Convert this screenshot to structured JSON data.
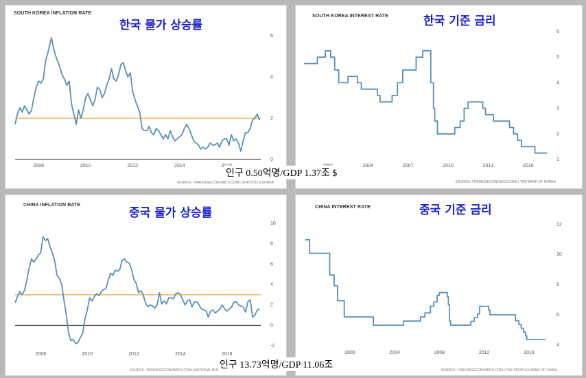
{
  "chart_data": [
    {
      "type": "line",
      "title": "SOUTH KOREA INFLATION RATE",
      "korean_title": "한국 물가 상승률",
      "source": "SOURCE: TRADINGECONOMICS.COM | STATISTICS KOREA",
      "xticks": [
        "2008",
        "2010",
        "2012",
        "2014",
        "2016"
      ],
      "yticks": [
        "0",
        "2",
        "4",
        "6"
      ],
      "xlim": [
        2007.0,
        2017.45
      ],
      "ylim": [
        0,
        6.2
      ],
      "reference_line": 2,
      "reference_color": "#f4a742",
      "series_color": "#5a8fb8",
      "x": [
        2007.0,
        2007.1,
        2007.2,
        2007.3,
        2007.4,
        2007.5,
        2007.6,
        2007.7,
        2007.8,
        2007.9,
        2008.0,
        2008.1,
        2008.2,
        2008.3,
        2008.4,
        2008.5,
        2008.55,
        2008.6,
        2008.7,
        2008.8,
        2008.9,
        2009.0,
        2009.1,
        2009.2,
        2009.3,
        2009.4,
        2009.5,
        2009.6,
        2009.7,
        2009.8,
        2009.9,
        2010.0,
        2010.1,
        2010.2,
        2010.3,
        2010.4,
        2010.5,
        2010.6,
        2010.7,
        2010.8,
        2010.9,
        2011.0,
        2011.1,
        2011.2,
        2011.3,
        2011.4,
        2011.5,
        2011.6,
        2011.7,
        2011.8,
        2011.9,
        2012.0,
        2012.1,
        2012.2,
        2012.3,
        2012.4,
        2012.5,
        2012.6,
        2012.7,
        2012.8,
        2012.9,
        2013.0,
        2013.1,
        2013.2,
        2013.3,
        2013.4,
        2013.5,
        2013.6,
        2013.7,
        2013.8,
        2013.9,
        2014.0,
        2014.1,
        2014.2,
        2014.3,
        2014.4,
        2014.5,
        2014.6,
        2014.7,
        2014.8,
        2014.9,
        2015.0,
        2015.1,
        2015.2,
        2015.3,
        2015.4,
        2015.5,
        2015.6,
        2015.7,
        2015.8,
        2015.9,
        2016.0,
        2016.1,
        2016.2,
        2016.3,
        2016.4,
        2016.5,
        2016.6,
        2016.7,
        2016.8,
        2016.9,
        2017.0,
        2017.1,
        2017.2,
        2017.3,
        2017.4
      ],
      "values": [
        1.7,
        2.2,
        2.5,
        2.3,
        2.6,
        2.4,
        2.2,
        2.4,
        3.0,
        3.5,
        3.8,
        3.7,
        3.9,
        4.8,
        5.2,
        5.7,
        5.9,
        5.6,
        5.1,
        4.8,
        4.5,
        4.1,
        3.9,
        3.6,
        3.8,
        2.7,
        2.2,
        1.7,
        2.4,
        2.0,
        2.4,
        3.0,
        3.2,
        2.9,
        2.6,
        2.9,
        3.5,
        3.4,
        3.0,
        3.2,
        3.6,
        3.9,
        4.4,
        3.9,
        3.8,
        4.1,
        4.6,
        4.7,
        4.3,
        4.0,
        4.2,
        3.3,
        2.9,
        2.6,
        2.3,
        1.5,
        1.4,
        1.4,
        1.6,
        1.3,
        1.2,
        1.5,
        1.4,
        1.2,
        1.0,
        1.2,
        1.0,
        1.4,
        1.1,
        0.9,
        1.0,
        1.1,
        1.2,
        1.5,
        1.7,
        1.5,
        1.2,
        0.9,
        0.8,
        0.7,
        0.5,
        0.6,
        0.5,
        0.6,
        0.8,
        0.7,
        0.7,
        0.8,
        0.6,
        0.9,
        1.0,
        1.0,
        0.7,
        1.2,
        0.9,
        1.0,
        0.8,
        0.4,
        0.9,
        1.3,
        1.3,
        1.5,
        1.9,
        2.0,
        2.2,
        1.9
      ]
    },
    {
      "type": "line",
      "title": "SOUTH KOREA INTEREST RATE",
      "korean_title": "한국 기준 금리",
      "source": "SOURCE: TRADINGECONOMICS.COM | THE BANK OF KOREA",
      "xticks": [
        "2001",
        "2004",
        "2007",
        "2010",
        "2013",
        "2016"
      ],
      "yticks": [
        "1",
        "2",
        "3",
        "4",
        "5",
        "6"
      ],
      "xlim": [
        1999.2,
        2017.4
      ],
      "ylim": [
        1,
        6
      ],
      "step": true,
      "series_color": "#5a8fb8",
      "x": [
        1999.2,
        2000.2,
        2000.8,
        2001.2,
        2001.5,
        2001.8,
        2002.5,
        2003.2,
        2003.5,
        2004.7,
        2004.9,
        2005.8,
        2006.2,
        2006.6,
        2007.6,
        2008.1,
        2008.7,
        2008.9,
        2009.0,
        2009.2,
        2010.5,
        2010.9,
        2011.2,
        2011.5,
        2012.6,
        2012.8,
        2013.4,
        2014.6,
        2014.9,
        2015.2,
        2015.5,
        2016.5,
        2017.4
      ],
      "values": [
        4.75,
        5.0,
        5.25,
        5.0,
        4.5,
        4.0,
        4.25,
        4.0,
        3.75,
        3.5,
        3.25,
        3.5,
        4.0,
        4.5,
        5.0,
        5.25,
        4.0,
        3.0,
        2.5,
        2.0,
        2.25,
        2.5,
        3.0,
        3.25,
        3.0,
        2.75,
        2.5,
        2.25,
        2.0,
        1.75,
        1.5,
        1.25,
        1.25
      ]
    },
    {
      "type": "line",
      "title": "CHINA INFLATION RATE",
      "korean_title": "중국 물가 상승률",
      "source": "SOURCE: TRADINGECONOMICS.COM | NATIONAL BUREAU OF STATISTICS OF CHINA",
      "xticks": [
        "2008",
        "2010",
        "2012",
        "2014",
        "2016"
      ],
      "yticks": [
        "-2",
        "0",
        "2",
        "4",
        "6",
        "8",
        "10"
      ],
      "xlim": [
        2006.9,
        2017.45
      ],
      "ylim": [
        -2.2,
        10.2
      ],
      "reference_line": 3,
      "reference_color": "#f4a742",
      "zero_line": true,
      "series_color": "#5a8fb8",
      "x": [
        2006.9,
        2007.0,
        2007.1,
        2007.2,
        2007.3,
        2007.4,
        2007.5,
        2007.6,
        2007.7,
        2007.8,
        2007.9,
        2008.0,
        2008.1,
        2008.2,
        2008.3,
        2008.4,
        2008.5,
        2008.6,
        2008.7,
        2008.8,
        2008.9,
        2009.0,
        2009.1,
        2009.2,
        2009.3,
        2009.4,
        2009.5,
        2009.6,
        2009.7,
        2009.8,
        2009.9,
        2010.0,
        2010.1,
        2010.2,
        2010.3,
        2010.4,
        2010.5,
        2010.6,
        2010.7,
        2010.8,
        2010.9,
        2011.0,
        2011.1,
        2011.2,
        2011.3,
        2011.4,
        2011.5,
        2011.6,
        2011.7,
        2011.8,
        2011.9,
        2012.0,
        2012.1,
        2012.2,
        2012.3,
        2012.4,
        2012.5,
        2012.6,
        2012.7,
        2012.8,
        2012.9,
        2013.0,
        2013.1,
        2013.2,
        2013.3,
        2013.4,
        2013.5,
        2013.6,
        2013.7,
        2013.8,
        2013.9,
        2014.0,
        2014.1,
        2014.2,
        2014.3,
        2014.4,
        2014.5,
        2014.6,
        2014.7,
        2014.8,
        2014.9,
        2015.0,
        2015.1,
        2015.2,
        2015.3,
        2015.4,
        2015.5,
        2015.6,
        2015.7,
        2015.8,
        2015.9,
        2016.0,
        2016.1,
        2016.2,
        2016.3,
        2016.4,
        2016.5,
        2016.6,
        2016.7,
        2016.8,
        2016.9,
        2017.0,
        2017.1,
        2017.2,
        2017.3,
        2017.4
      ],
      "values": [
        2.2,
        2.8,
        3.3,
        3.0,
        3.4,
        4.4,
        5.6,
        6.5,
        6.2,
        6.5,
        6.9,
        7.1,
        8.7,
        8.3,
        8.5,
        7.7,
        7.1,
        6.3,
        4.9,
        4.6,
        4.0,
        2.4,
        1.0,
        -0.8,
        -1.5,
        -1.4,
        -1.8,
        -1.7,
        -1.2,
        -0.8,
        0.6,
        1.5,
        2.7,
        2.4,
        2.8,
        3.1,
        2.9,
        3.3,
        3.5,
        3.6,
        4.4,
        5.1,
        4.9,
        5.4,
        5.3,
        5.5,
        6.4,
        6.5,
        6.2,
        6.1,
        5.5,
        4.5,
        4.1,
        3.2,
        3.4,
        3.0,
        2.2,
        1.8,
        2.0,
        1.9,
        1.7,
        2.0,
        3.2,
        2.1,
        2.4,
        2.1,
        2.7,
        2.7,
        2.6,
        3.1,
        3.2,
        3.0,
        2.5,
        2.0,
        2.4,
        2.5,
        1.8,
        2.3,
        2.3,
        2.0,
        1.6,
        1.5,
        1.4,
        0.8,
        1.4,
        1.5,
        1.2,
        1.4,
        1.6,
        2.0,
        1.6,
        1.4,
        1.6,
        1.8,
        2.3,
        2.3,
        2.0,
        1.9,
        1.8,
        1.3,
        2.3,
        2.5,
        0.8,
        1.0,
        1.5,
        1.6
      ]
    },
    {
      "type": "line",
      "title": "CHINA INTEREST RATE",
      "korean_title": "중국 기준 금리",
      "source": "SOURCE: TRADINGECONOMICS.COM | THE PEOPLES BANK OF CHINA",
      "xticks": [
        "2000",
        "2004",
        "2008",
        "2012",
        "2016"
      ],
      "yticks": [
        "4",
        "6",
        "8",
        "10",
        "12"
      ],
      "xlim": [
        1995.9,
        2017.6
      ],
      "ylim": [
        3.9,
        12.2
      ],
      "step": true,
      "series_color": "#5a8fb8",
      "x": [
        1996.0,
        1996.4,
        1996.6,
        1997.8,
        1998.2,
        1998.6,
        1998.9,
        1999.5,
        2002.1,
        2004.8,
        2006.3,
        2006.7,
        2007.2,
        2007.5,
        2007.8,
        2008.0,
        2008.7,
        2008.8,
        2008.9,
        2009.0,
        2010.8,
        2011.1,
        2011.4,
        2011.6,
        2012.4,
        2012.5,
        2014.8,
        2015.1,
        2015.3,
        2015.5,
        2015.7,
        2015.8,
        2016.0,
        2017.5
      ],
      "values": [
        10.98,
        10.08,
        10.08,
        10.08,
        8.64,
        7.92,
        6.93,
        5.85,
        5.31,
        5.58,
        5.85,
        6.12,
        6.57,
        6.84,
        7.29,
        7.47,
        7.2,
        6.66,
        5.58,
        5.31,
        5.56,
        5.81,
        6.06,
        6.56,
        6.31,
        6.0,
        5.6,
        5.35,
        5.1,
        4.85,
        4.6,
        4.35,
        4.35,
        4.35
      ]
    }
  ],
  "captions": {
    "korea": "인구 0.50억명/GDP 1.37조 $",
    "china": "인구 13.73억명/GDP 11.06조"
  }
}
